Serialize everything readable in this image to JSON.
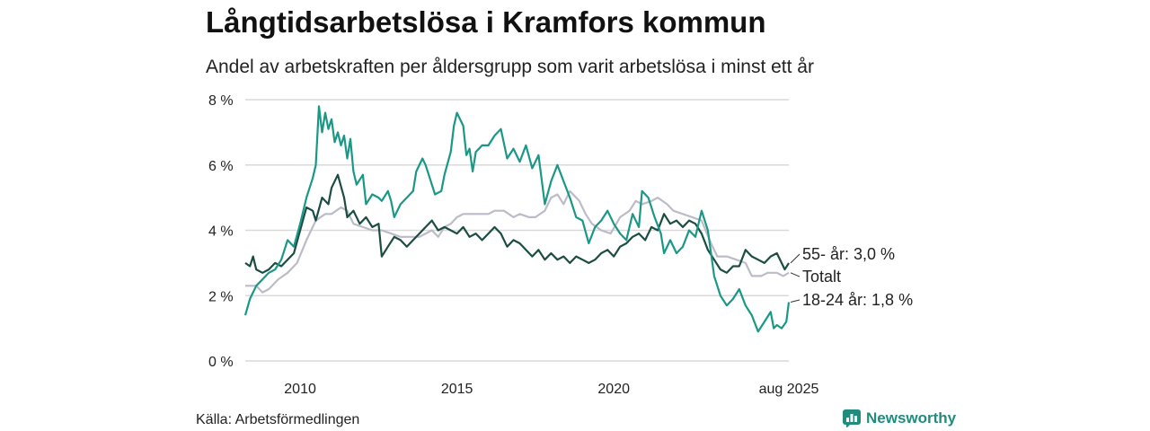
{
  "header": {
    "title": "Långtidsarbetslösa i Kramfors kommun",
    "subtitle": "Andel av arbetskraften per åldersgrupp som varit arbetslösa i minst ett år"
  },
  "footer": {
    "source": "Källa: Arbetsförmedlingen",
    "brand": "Newsworthy"
  },
  "colors": {
    "age_55_plus": "#1b4d42",
    "total": "#bcbcc8",
    "age_18_24": "#1a9886",
    "grid": "#d9d9d9",
    "brand": "#1f8c7e"
  },
  "chart_data": {
    "type": "line",
    "xlim": [
      2008.25,
      2025.58
    ],
    "ylim": [
      0,
      8
    ],
    "y_ticks": [
      0,
      2,
      4,
      6,
      8
    ],
    "y_tick_labels": [
      "0 %",
      "2 %",
      "4 %",
      "6 %",
      "8 %"
    ],
    "x_ticks": [
      2010,
      2015,
      2020,
      2025.58
    ],
    "x_tick_labels": [
      "2010",
      "2015",
      "2020",
      "aug 2025"
    ],
    "grid": "horizontal",
    "series": [
      {
        "name": "Totalt",
        "label": "Totalt",
        "key": "total",
        "points": [
          [
            2008.25,
            2.3
          ],
          [
            2008.6,
            2.3
          ],
          [
            2008.8,
            2.1
          ],
          [
            2009.0,
            2.2
          ],
          [
            2009.3,
            2.5
          ],
          [
            2009.6,
            2.7
          ],
          [
            2009.9,
            3.0
          ],
          [
            2010.2,
            3.7
          ],
          [
            2010.5,
            4.3
          ],
          [
            2010.8,
            4.5
          ],
          [
            2011.0,
            4.5
          ],
          [
            2011.3,
            4.7
          ],
          [
            2011.5,
            4.6
          ],
          [
            2011.7,
            4.2
          ],
          [
            2012.0,
            4.1
          ],
          [
            2012.3,
            4.0
          ],
          [
            2012.6,
            4.0
          ],
          [
            2012.9,
            3.9
          ],
          [
            2013.2,
            3.8
          ],
          [
            2013.5,
            3.8
          ],
          [
            2013.8,
            3.8
          ],
          [
            2014.0,
            3.9
          ],
          [
            2014.2,
            4.0
          ],
          [
            2014.4,
            3.8
          ],
          [
            2014.6,
            4.1
          ],
          [
            2014.8,
            4.2
          ],
          [
            2015.0,
            4.4
          ],
          [
            2015.2,
            4.5
          ],
          [
            2015.5,
            4.5
          ],
          [
            2015.8,
            4.5
          ],
          [
            2016.0,
            4.5
          ],
          [
            2016.2,
            4.6
          ],
          [
            2016.5,
            4.6
          ],
          [
            2016.8,
            4.4
          ],
          [
            2017.0,
            4.5
          ],
          [
            2017.3,
            4.4
          ],
          [
            2017.5,
            4.4
          ],
          [
            2017.8,
            4.6
          ],
          [
            2018.0,
            5.0
          ],
          [
            2018.2,
            5.1
          ],
          [
            2018.4,
            4.8
          ],
          [
            2018.6,
            5.2
          ],
          [
            2018.9,
            4.9
          ],
          [
            2019.1,
            4.5
          ],
          [
            2019.3,
            4.2
          ],
          [
            2019.6,
            4.0
          ],
          [
            2019.9,
            3.9
          ],
          [
            2020.2,
            4.4
          ],
          [
            2020.5,
            4.6
          ],
          [
            2020.7,
            4.9
          ],
          [
            2020.9,
            4.8
          ],
          [
            2021.2,
            4.9
          ],
          [
            2021.4,
            5.0
          ],
          [
            2021.7,
            4.8
          ],
          [
            2021.9,
            4.6
          ],
          [
            2022.2,
            4.5
          ],
          [
            2022.5,
            4.4
          ],
          [
            2022.8,
            4.3
          ],
          [
            2023.1,
            3.6
          ],
          [
            2023.3,
            3.2
          ],
          [
            2023.6,
            3.2
          ],
          [
            2023.9,
            3.1
          ],
          [
            2024.2,
            3.0
          ],
          [
            2024.4,
            2.6
          ],
          [
            2024.7,
            2.6
          ],
          [
            2024.9,
            2.7
          ],
          [
            2025.2,
            2.7
          ],
          [
            2025.4,
            2.6
          ],
          [
            2025.58,
            2.7
          ]
        ]
      },
      {
        "name": "55- år",
        "label": "55- år: 3,0 %",
        "key": "age_55_plus",
        "points": [
          [
            2008.25,
            3.0
          ],
          [
            2008.4,
            2.9
          ],
          [
            2008.5,
            3.2
          ],
          [
            2008.6,
            2.8
          ],
          [
            2008.8,
            2.7
          ],
          [
            2009.0,
            2.8
          ],
          [
            2009.2,
            3.0
          ],
          [
            2009.4,
            2.9
          ],
          [
            2009.6,
            3.1
          ],
          [
            2009.8,
            3.3
          ],
          [
            2010.0,
            4.0
          ],
          [
            2010.2,
            4.7
          ],
          [
            2010.4,
            4.6
          ],
          [
            2010.5,
            4.3
          ],
          [
            2010.7,
            5.0
          ],
          [
            2010.9,
            4.8
          ],
          [
            2011.0,
            5.3
          ],
          [
            2011.2,
            5.7
          ],
          [
            2011.4,
            5.0
          ],
          [
            2011.5,
            4.4
          ],
          [
            2011.7,
            4.6
          ],
          [
            2011.9,
            4.2
          ],
          [
            2012.1,
            4.4
          ],
          [
            2012.3,
            4.1
          ],
          [
            2012.5,
            4.2
          ],
          [
            2012.6,
            3.2
          ],
          [
            2012.8,
            3.5
          ],
          [
            2013.0,
            3.8
          ],
          [
            2013.2,
            3.7
          ],
          [
            2013.4,
            3.5
          ],
          [
            2013.6,
            3.7
          ],
          [
            2013.8,
            3.9
          ],
          [
            2014.0,
            4.1
          ],
          [
            2014.2,
            4.3
          ],
          [
            2014.4,
            4.0
          ],
          [
            2014.6,
            4.1
          ],
          [
            2014.8,
            4.0
          ],
          [
            2015.0,
            3.9
          ],
          [
            2015.2,
            4.1
          ],
          [
            2015.4,
            3.8
          ],
          [
            2015.6,
            3.9
          ],
          [
            2015.8,
            3.7
          ],
          [
            2016.0,
            3.9
          ],
          [
            2016.2,
            4.1
          ],
          [
            2016.4,
            3.9
          ],
          [
            2016.6,
            3.5
          ],
          [
            2016.8,
            3.7
          ],
          [
            2017.0,
            3.6
          ],
          [
            2017.2,
            3.4
          ],
          [
            2017.4,
            3.2
          ],
          [
            2017.6,
            3.4
          ],
          [
            2017.8,
            3.1
          ],
          [
            2018.0,
            3.3
          ],
          [
            2018.2,
            3.1
          ],
          [
            2018.4,
            3.2
          ],
          [
            2018.6,
            3.0
          ],
          [
            2018.8,
            3.2
          ],
          [
            2019.0,
            3.1
          ],
          [
            2019.2,
            3.0
          ],
          [
            2019.4,
            3.1
          ],
          [
            2019.6,
            3.3
          ],
          [
            2019.8,
            3.4
          ],
          [
            2020.0,
            3.2
          ],
          [
            2020.2,
            3.5
          ],
          [
            2020.4,
            3.6
          ],
          [
            2020.6,
            3.8
          ],
          [
            2020.8,
            3.9
          ],
          [
            2021.0,
            3.7
          ],
          [
            2021.2,
            4.1
          ],
          [
            2021.4,
            4.0
          ],
          [
            2021.6,
            4.5
          ],
          [
            2021.8,
            4.2
          ],
          [
            2022.0,
            4.3
          ],
          [
            2022.2,
            4.1
          ],
          [
            2022.4,
            4.3
          ],
          [
            2022.6,
            4.2
          ],
          [
            2022.8,
            3.9
          ],
          [
            2023.0,
            3.4
          ],
          [
            2023.2,
            3.1
          ],
          [
            2023.4,
            2.8
          ],
          [
            2023.6,
            2.7
          ],
          [
            2023.8,
            2.9
          ],
          [
            2024.0,
            2.9
          ],
          [
            2024.2,
            3.4
          ],
          [
            2024.4,
            3.2
          ],
          [
            2024.6,
            3.1
          ],
          [
            2024.8,
            3.0
          ],
          [
            2025.0,
            3.2
          ],
          [
            2025.2,
            3.3
          ],
          [
            2025.35,
            3.0
          ],
          [
            2025.45,
            2.8
          ],
          [
            2025.58,
            3.0
          ]
        ]
      },
      {
        "name": "18-24 år",
        "label": "18-24 år: 1,8 %",
        "key": "age_18_24",
        "points": [
          [
            2008.25,
            1.4
          ],
          [
            2008.4,
            1.9
          ],
          [
            2008.6,
            2.3
          ],
          [
            2008.8,
            2.5
          ],
          [
            2009.0,
            2.7
          ],
          [
            2009.2,
            2.8
          ],
          [
            2009.4,
            3.1
          ],
          [
            2009.6,
            3.7
          ],
          [
            2009.8,
            3.5
          ],
          [
            2010.0,
            4.2
          ],
          [
            2010.2,
            5.0
          ],
          [
            2010.4,
            5.6
          ],
          [
            2010.5,
            6.0
          ],
          [
            2010.6,
            7.8
          ],
          [
            2010.7,
            7.0
          ],
          [
            2010.8,
            7.6
          ],
          [
            2010.9,
            7.1
          ],
          [
            2011.0,
            7.4
          ],
          [
            2011.1,
            6.7
          ],
          [
            2011.2,
            7.0
          ],
          [
            2011.3,
            6.6
          ],
          [
            2011.4,
            6.9
          ],
          [
            2011.5,
            6.2
          ],
          [
            2011.6,
            6.8
          ],
          [
            2011.7,
            5.8
          ],
          [
            2011.8,
            5.4
          ],
          [
            2012.0,
            5.7
          ],
          [
            2012.1,
            4.8
          ],
          [
            2012.3,
            5.1
          ],
          [
            2012.5,
            5.0
          ],
          [
            2012.6,
            4.9
          ],
          [
            2012.8,
            5.2
          ],
          [
            2012.9,
            4.9
          ],
          [
            2013.0,
            4.4
          ],
          [
            2013.2,
            4.8
          ],
          [
            2013.4,
            5.0
          ],
          [
            2013.6,
            5.2
          ],
          [
            2013.7,
            5.8
          ],
          [
            2013.9,
            6.2
          ],
          [
            2014.0,
            6.0
          ],
          [
            2014.2,
            5.4
          ],
          [
            2014.3,
            5.1
          ],
          [
            2014.5,
            5.2
          ],
          [
            2014.6,
            5.7
          ],
          [
            2014.8,
            6.4
          ],
          [
            2014.9,
            7.2
          ],
          [
            2015.0,
            7.6
          ],
          [
            2015.2,
            7.2
          ],
          [
            2015.3,
            6.3
          ],
          [
            2015.4,
            6.5
          ],
          [
            2015.5,
            5.8
          ],
          [
            2015.6,
            6.4
          ],
          [
            2015.8,
            6.6
          ],
          [
            2016.0,
            6.6
          ],
          [
            2016.2,
            6.9
          ],
          [
            2016.4,
            7.1
          ],
          [
            2016.6,
            6.2
          ],
          [
            2016.8,
            6.5
          ],
          [
            2017.0,
            6.1
          ],
          [
            2017.2,
            6.6
          ],
          [
            2017.4,
            5.9
          ],
          [
            2017.6,
            6.3
          ],
          [
            2017.8,
            4.8
          ],
          [
            2018.0,
            5.5
          ],
          [
            2018.2,
            6.0
          ],
          [
            2018.4,
            5.5
          ],
          [
            2018.6,
            5.0
          ],
          [
            2018.8,
            4.4
          ],
          [
            2019.0,
            4.3
          ],
          [
            2019.2,
            3.6
          ],
          [
            2019.4,
            4.1
          ],
          [
            2019.6,
            4.3
          ],
          [
            2019.8,
            4.6
          ],
          [
            2020.0,
            4.2
          ],
          [
            2020.2,
            3.9
          ],
          [
            2020.4,
            3.7
          ],
          [
            2020.6,
            4.5
          ],
          [
            2020.8,
            4.1
          ],
          [
            2020.9,
            5.2
          ],
          [
            2021.1,
            5.0
          ],
          [
            2021.3,
            4.4
          ],
          [
            2021.5,
            3.9
          ],
          [
            2021.6,
            3.3
          ],
          [
            2021.8,
            3.7
          ],
          [
            2022.0,
            3.3
          ],
          [
            2022.2,
            3.5
          ],
          [
            2022.4,
            4.0
          ],
          [
            2022.6,
            3.8
          ],
          [
            2022.8,
            4.6
          ],
          [
            2023.0,
            4.0
          ],
          [
            2023.2,
            2.6
          ],
          [
            2023.4,
            2.0
          ],
          [
            2023.6,
            1.7
          ],
          [
            2023.8,
            1.9
          ],
          [
            2024.0,
            2.2
          ],
          [
            2024.2,
            1.7
          ],
          [
            2024.4,
            1.4
          ],
          [
            2024.6,
            0.9
          ],
          [
            2024.8,
            1.2
          ],
          [
            2025.0,
            1.5
          ],
          [
            2025.1,
            1.0
          ],
          [
            2025.2,
            1.1
          ],
          [
            2025.35,
            1.0
          ],
          [
            2025.5,
            1.2
          ],
          [
            2025.58,
            1.8
          ]
        ]
      }
    ]
  }
}
